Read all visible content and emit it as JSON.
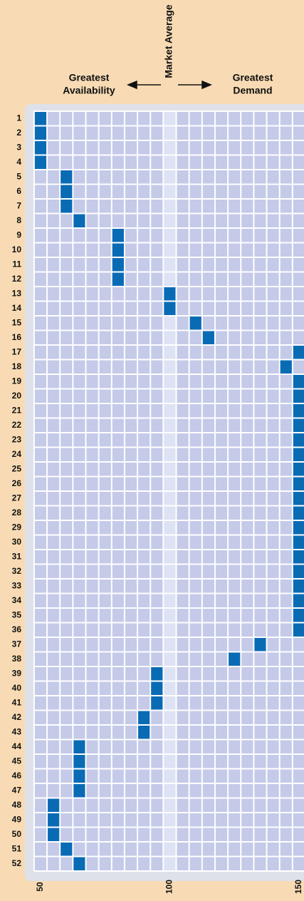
{
  "chart_data": {
    "type": "scatter",
    "annotations": {
      "left": [
        "Greatest",
        "Availability"
      ],
      "center": "Market Average",
      "right": [
        "Greatest",
        "Demand"
      ]
    },
    "categories": [
      1,
      2,
      3,
      4,
      5,
      6,
      7,
      8,
      9,
      10,
      11,
      12,
      13,
      14,
      15,
      16,
      17,
      18,
      19,
      20,
      21,
      22,
      23,
      24,
      25,
      26,
      27,
      28,
      29,
      30,
      31,
      32,
      33,
      34,
      35,
      36,
      37,
      38,
      39,
      40,
      41,
      42,
      43,
      44,
      45,
      46,
      47,
      48,
      49,
      50,
      51,
      52
    ],
    "values": [
      50,
      50,
      50,
      50,
      60,
      60,
      60,
      65,
      80,
      80,
      80,
      80,
      100,
      100,
      110,
      115,
      150,
      145,
      150,
      150,
      150,
      150,
      150,
      150,
      150,
      150,
      150,
      150,
      150,
      150,
      150,
      150,
      150,
      150,
      150,
      150,
      135,
      125,
      95,
      95,
      95,
      90,
      90,
      65,
      65,
      65,
      65,
      55,
      55,
      55,
      60,
      65
    ],
    "color": "#0a6bb5",
    "bin_width": 5,
    "reference_x": 100,
    "xlim": [
      47.5,
      152.5
    ],
    "xticks": [
      50,
      100,
      150
    ]
  }
}
